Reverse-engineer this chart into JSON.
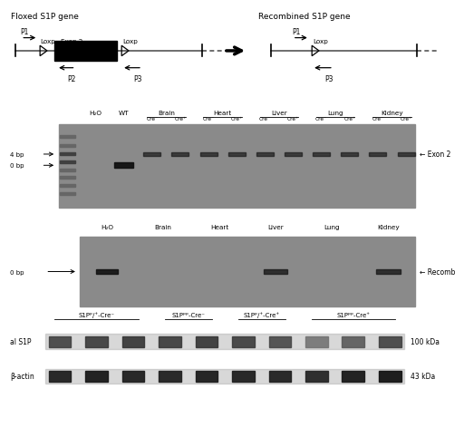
{
  "bg_color": "#ffffff",
  "floxed_label": "Floxed S1P gene",
  "recombined_label": "Recombined S1P gene",
  "gel1_right_label": "← Exon 2",
  "gel2_right_label": "← Recomb",
  "wb_group_labels": [
    "S1Pᵖ/⁺-Cre⁻",
    "S1Pᵖᵖ-Cre⁻",
    "S1Pᵖ/⁺-Cre⁺",
    "S1Pᵖᵖ-Cre⁺"
  ],
  "wb_row1_label": "al S1P",
  "wb_row2_label": "β-actin",
  "wb_right1": "100 kDa",
  "wb_right2": "43 kDa",
  "gel1_bp1": "4 bp",
  "gel1_bp2": "0 bp",
  "gel2_bp": "0 bp"
}
